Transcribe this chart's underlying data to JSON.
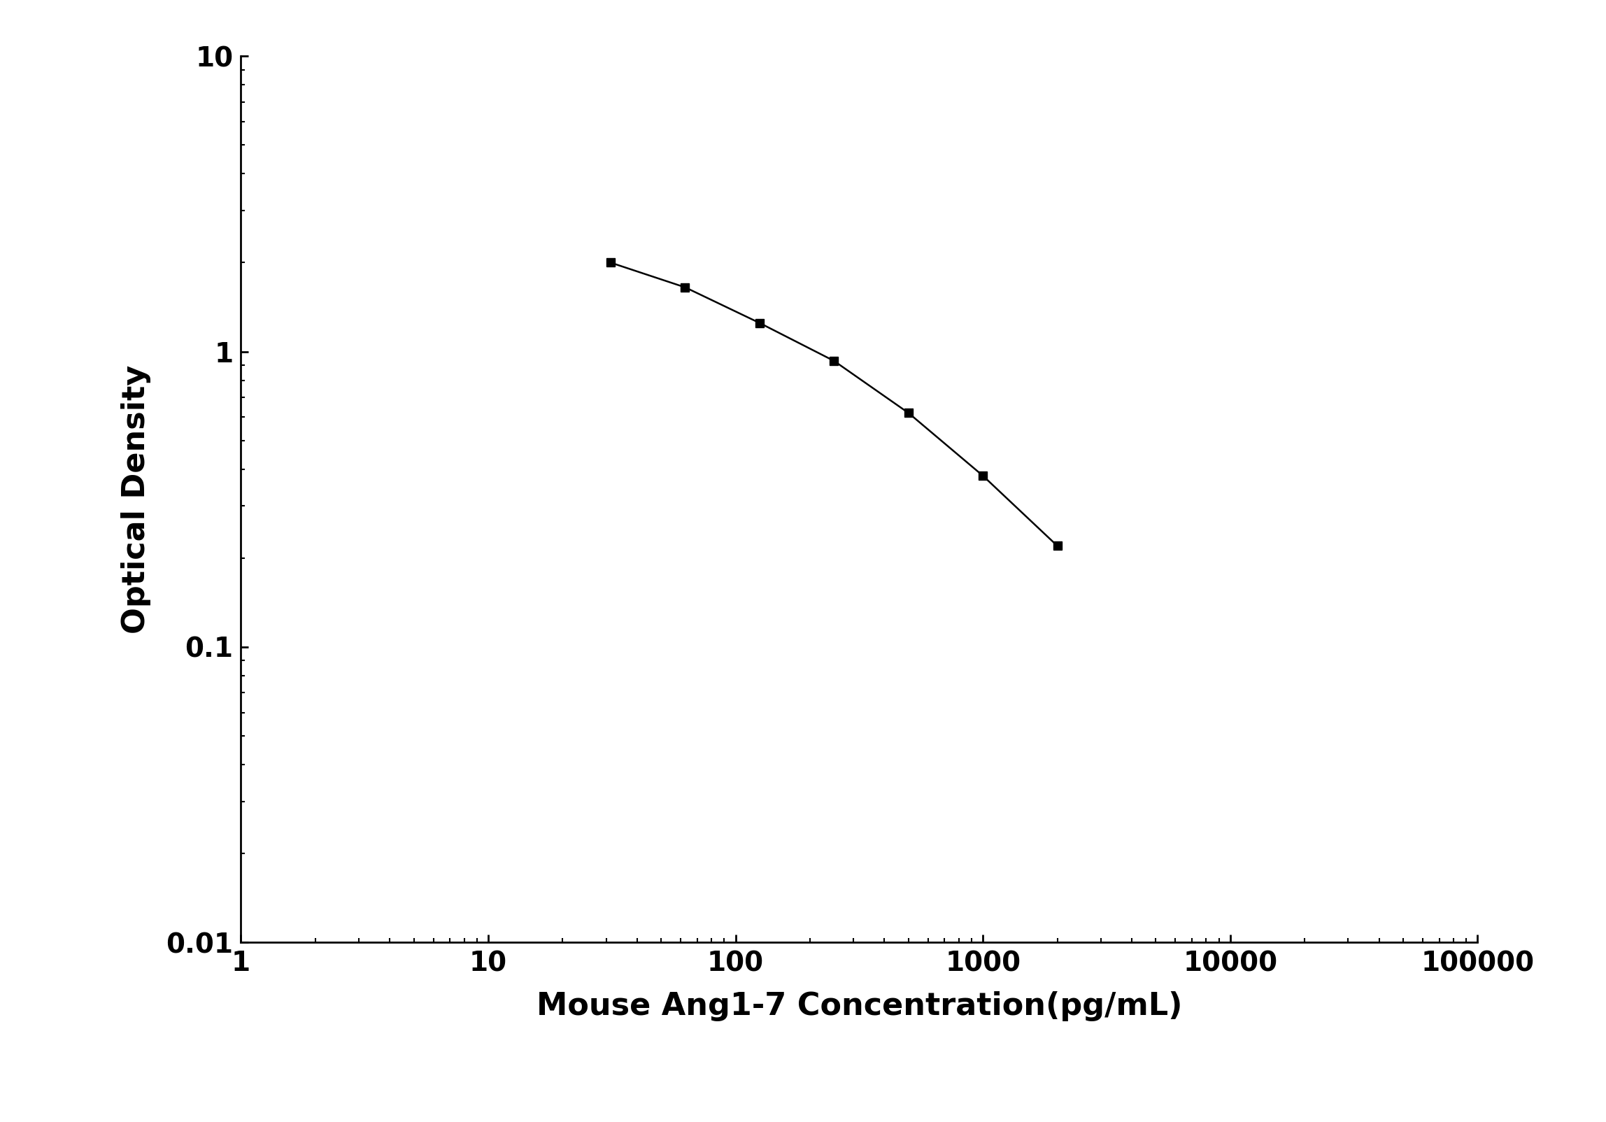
{
  "x": [
    31.25,
    62.5,
    125,
    250,
    500,
    1000,
    2000
  ],
  "y": [
    2.0,
    1.65,
    1.25,
    0.93,
    0.62,
    0.38,
    0.22
  ],
  "xlabel": "Mouse Ang1-7 Concentration(pg/mL)",
  "ylabel": "Optical Density",
  "xlim": [
    1,
    100000
  ],
  "ylim": [
    0.01,
    10
  ],
  "line_color": "#000000",
  "marker": "s",
  "marker_size": 9,
  "marker_color": "#000000",
  "line_width": 1.8,
  "xlabel_fontsize": 32,
  "ylabel_fontsize": 32,
  "tick_fontsize": 28,
  "background_color": "#ffffff",
  "spine_linewidth": 2.0
}
